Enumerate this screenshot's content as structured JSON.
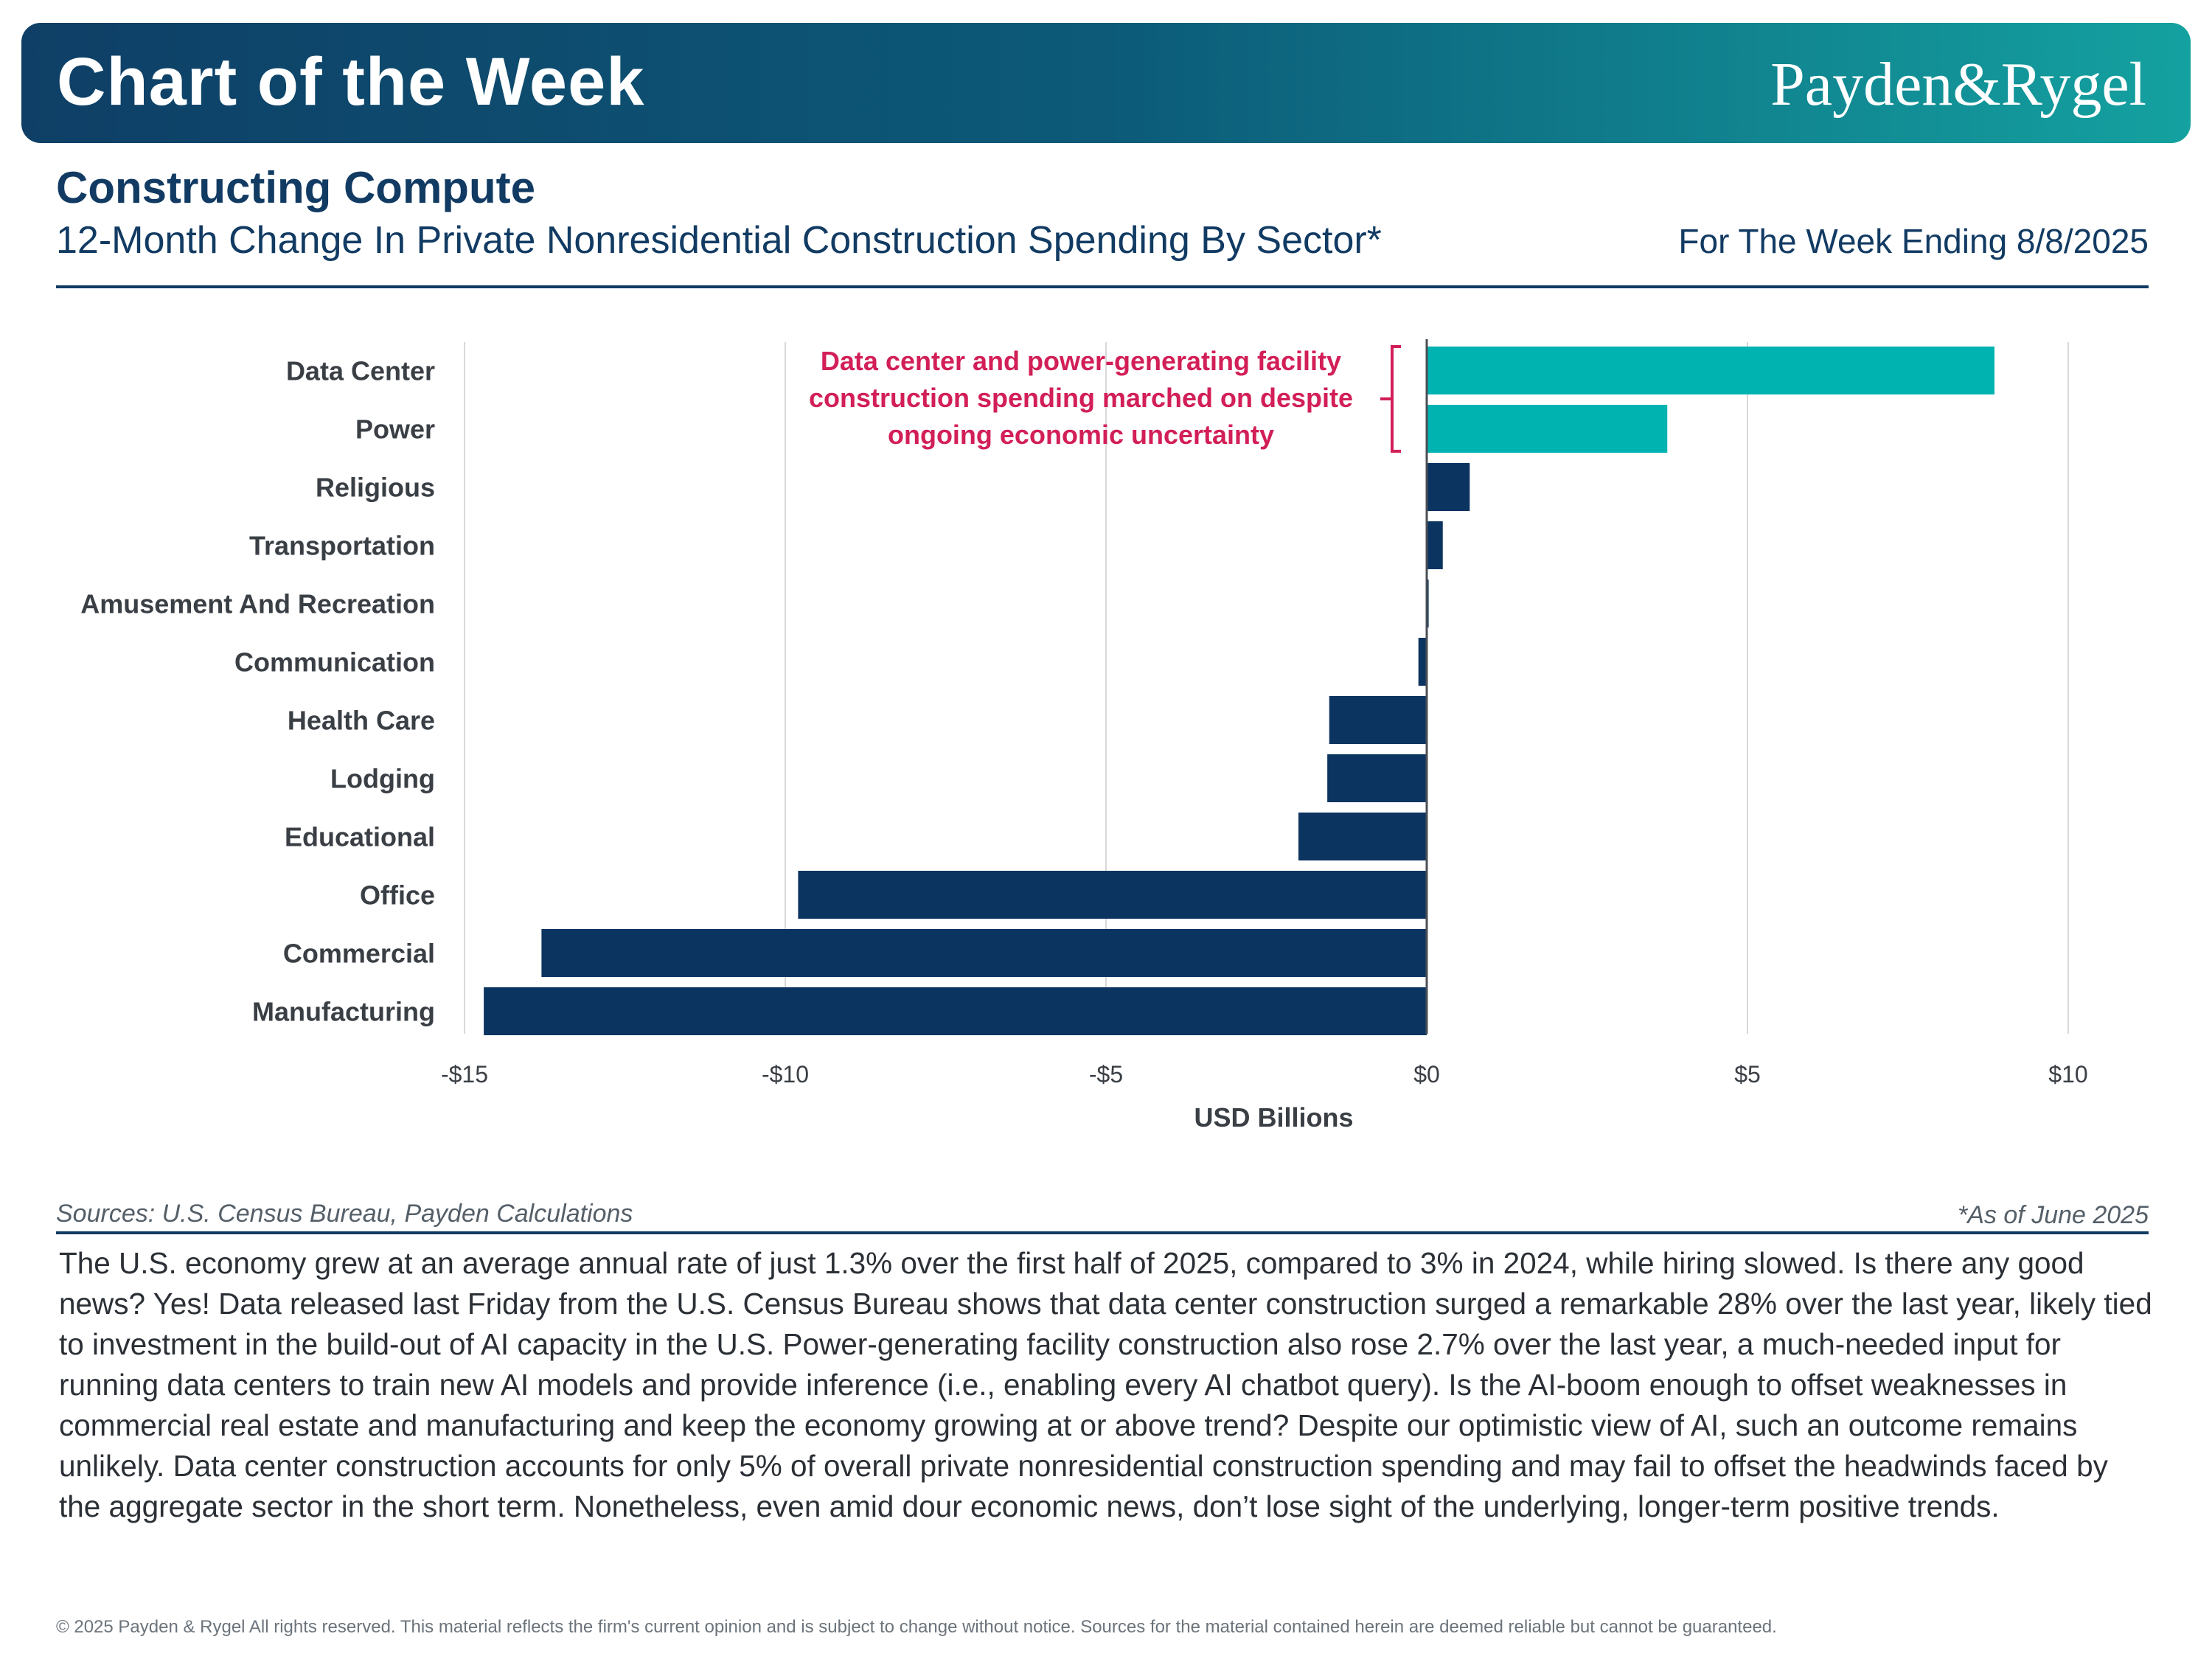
{
  "header": {
    "title": "Chart of the Week",
    "brand": "Payden&Rygel"
  },
  "headline": "Constructing Compute",
  "subtitle": "12-Month Change In Private Nonresidential Construction Spending By Sector*",
  "week_ending": "For The Week Ending 8/8/2025",
  "colors": {
    "highlight": "#00b3b0",
    "bar": "#0c3461",
    "annotation": "#d21f57",
    "title": "#123b63"
  },
  "chart_data": {
    "type": "bar",
    "orientation": "horizontal",
    "categories": [
      "Data Center",
      "Power",
      "Religious",
      "Transportation",
      "Amusement And Recreation",
      "Communication",
      "Health Care",
      "Lodging",
      "Educational",
      "Office",
      "Commercial",
      "Manufacturing"
    ],
    "values": [
      8.85,
      3.75,
      0.67,
      0.25,
      0.03,
      -0.13,
      -1.52,
      -1.55,
      -2.0,
      -9.8,
      -13.8,
      -14.7
    ],
    "highlighted": [
      "Data Center",
      "Power"
    ],
    "xlabel": "USD Billions",
    "xlim": [
      -15,
      10
    ],
    "xticks": [
      -15,
      -10,
      -5,
      0,
      5,
      10
    ],
    "xtick_labels": [
      "-$15",
      "-$10",
      "-$5",
      "$0",
      "$5",
      "$10"
    ],
    "grid": true,
    "annotation": [
      "Data center and power-generating facility",
      "construction spending marched on despite",
      "ongoing economic uncertainty"
    ]
  },
  "sources": "Sources: U.S. Census Bureau, Payden Calculations",
  "as_of": "*As of June 2025",
  "body": "The U.S. economy grew at an average annual rate of just 1.3% over the first half of 2025, compared to 3% in 2024, while hiring slowed. Is there any good news? Yes! Data released last Friday from the U.S. Census Bureau shows that data center construction surged a remarkable 28% over the last year, likely tied to investment in the build-out of AI capacity in the U.S. Power-generating facility construction also rose 2.7% over the last year, a much-needed input for running data centers to train new AI models and provide inference (i.e., enabling every AI chatbot query). Is the AI-boom enough to offset weaknesses in commercial real estate and manufacturing and keep the economy growing at or above trend? Despite our optimistic view of AI, such an outcome remains unlikely. Data center construction accounts for only 5% of overall private nonresidential construction spending and may fail to offset the headwinds faced by the aggregate sector in the short term. Nonetheless, even amid dour economic news, don’t lose sight of the underlying, longer-term positive trends.",
  "footer": "© 2025 Payden & Rygel All rights reserved. This material reflects the firm's current opinion and is subject to change without notice. Sources for the material contained herein are deemed reliable but cannot be guaranteed."
}
